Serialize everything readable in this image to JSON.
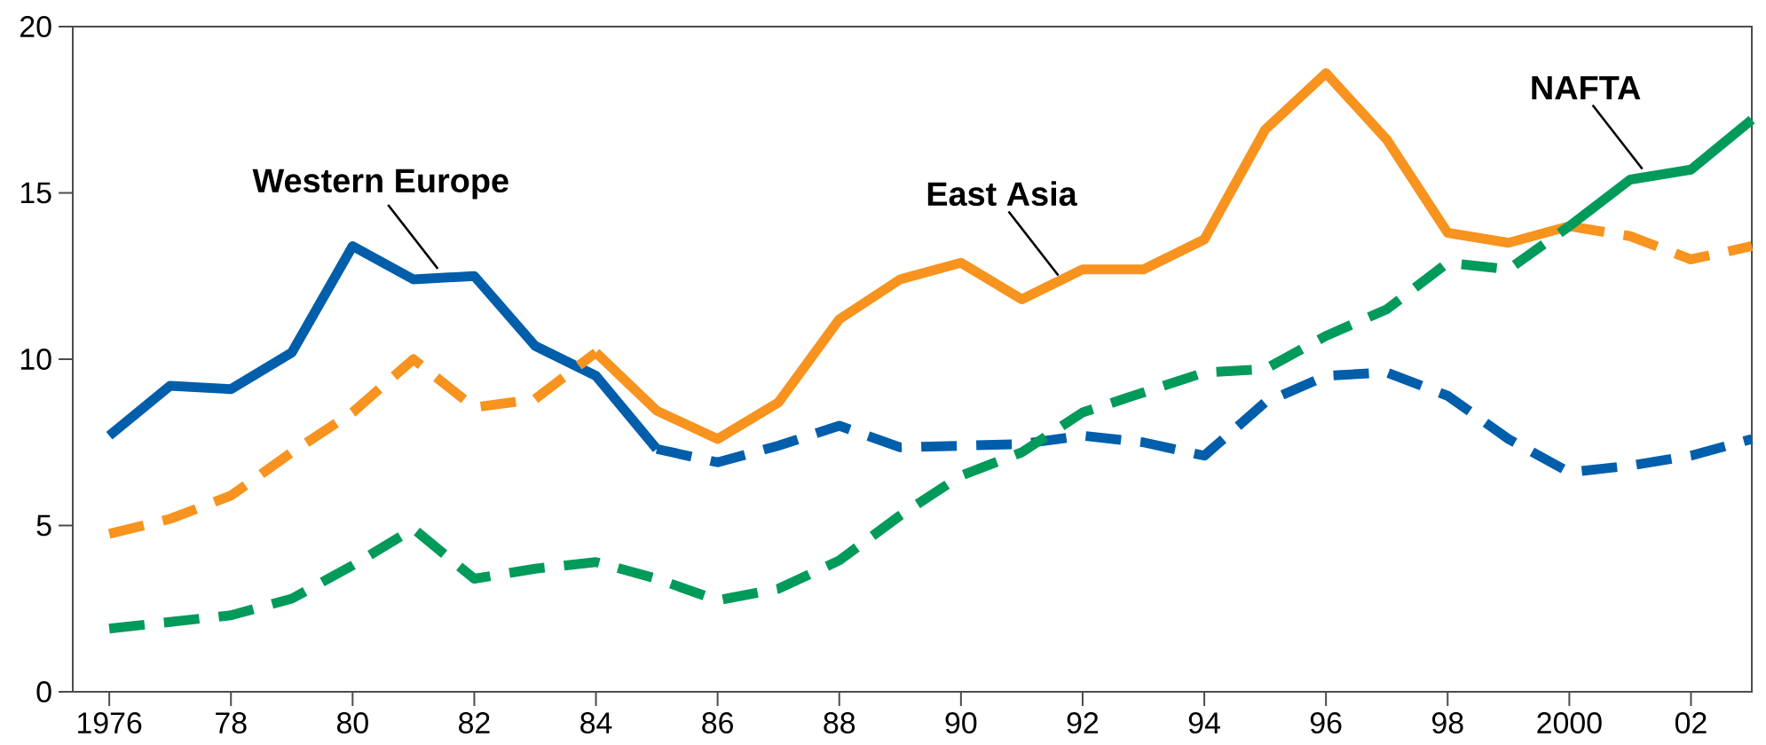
{
  "chart_data": {
    "type": "line",
    "xlim": [
      1975.4,
      2003
    ],
    "ylim": [
      0,
      20
    ],
    "xticks": [
      {
        "value": 1976,
        "label": "1976"
      },
      {
        "value": 1978,
        "label": "78"
      },
      {
        "value": 1980,
        "label": "80"
      },
      {
        "value": 1982,
        "label": "82"
      },
      {
        "value": 1984,
        "label": "84"
      },
      {
        "value": 1986,
        "label": "86"
      },
      {
        "value": 1988,
        "label": "88"
      },
      {
        "value": 1990,
        "label": "90"
      },
      {
        "value": 1992,
        "label": "92"
      },
      {
        "value": 1994,
        "label": "94"
      },
      {
        "value": 1996,
        "label": "96"
      },
      {
        "value": 1998,
        "label": "98"
      },
      {
        "value": 2000,
        "label": "2000"
      },
      {
        "value": 2002,
        "label": "02"
      }
    ],
    "yticks": [
      0,
      5,
      10,
      15,
      20
    ],
    "grid": false,
    "marker": "none",
    "series": [
      {
        "color": "#005eab",
        "line_style": "solid",
        "x": [
          1976,
          1977,
          1978,
          1979,
          1980,
          1981,
          1982,
          1983,
          1984,
          1985
        ],
        "values": [
          7.7,
          9.2,
          9.1,
          10.2,
          13.4,
          12.4,
          12.5,
          10.4,
          9.5,
          7.3
        ]
      },
      {
        "color": "#005eab",
        "line_style": "dashed",
        "x": [
          1985,
          1986,
          1987,
          1988,
          1989,
          1990,
          1991,
          1992,
          1993,
          1994,
          1995,
          1996,
          1997,
          1998,
          1999,
          2000,
          2001,
          2002,
          2003
        ],
        "values": [
          7.3,
          6.9,
          7.4,
          8.0,
          7.35,
          7.4,
          7.45,
          7.7,
          7.5,
          7.1,
          8.7,
          9.5,
          9.6,
          8.9,
          7.6,
          6.6,
          6.8,
          7.1,
          7.6
        ]
      },
      {
        "color": "#f7931e",
        "line_style": "dashed",
        "x": [
          1976,
          1977,
          1978,
          1979,
          1980,
          1981,
          1982,
          1983,
          1984
        ],
        "values": [
          4.75,
          5.2,
          5.9,
          7.2,
          8.4,
          10.0,
          8.55,
          8.8,
          10.2
        ]
      },
      {
        "color": "#f7931e",
        "line_style": "solid",
        "x": [
          1984,
          1985,
          1986,
          1987,
          1988,
          1989,
          1990,
          1991,
          1992,
          1993,
          1994,
          1995,
          1996,
          1997,
          1998,
          1999,
          2000
        ],
        "values": [
          10.2,
          8.45,
          7.6,
          8.7,
          11.2,
          12.4,
          12.9,
          11.8,
          12.7,
          12.7,
          13.6,
          16.9,
          18.6,
          16.6,
          13.8,
          13.5,
          14.0
        ]
      },
      {
        "color": "#f7931e",
        "line_style": "dashed",
        "x": [
          2000,
          2001,
          2002,
          2003
        ],
        "values": [
          14.0,
          13.7,
          13.0,
          13.4
        ]
      },
      {
        "color": "#009a5a",
        "line_style": "dashed",
        "x": [
          1976,
          1977,
          1978,
          1979,
          1980,
          1981,
          1982,
          1983,
          1984,
          1985,
          1986,
          1987,
          1988,
          1989,
          1990,
          1991,
          1992,
          1993,
          1994,
          1995,
          1996,
          1997,
          1998,
          1999,
          2000
        ],
        "values": [
          1.9,
          2.1,
          2.3,
          2.8,
          3.8,
          4.9,
          3.4,
          3.7,
          3.9,
          3.4,
          2.75,
          3.1,
          3.95,
          5.3,
          6.5,
          7.2,
          8.4,
          9.0,
          9.6,
          9.7,
          10.7,
          11.5,
          12.9,
          12.7,
          14.0
        ]
      },
      {
        "color": "#009a5a",
        "line_style": "solid",
        "x": [
          2000,
          2001,
          2002,
          2003
        ],
        "values": [
          14.0,
          15.4,
          15.7,
          17.2
        ]
      }
    ],
    "annotations": [
      {
        "text": "Western Europe",
        "x": 1981.4,
        "y": 12.4
      },
      {
        "text": "East Asia",
        "x": 1991.6,
        "y": 12.2
      },
      {
        "text": "NAFTA",
        "x": 2001.2,
        "y": 15.4
      }
    ]
  }
}
